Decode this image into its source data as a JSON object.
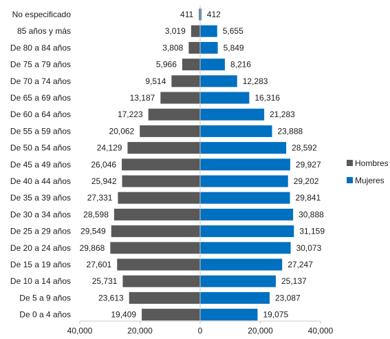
{
  "chart_data": {
    "type": "bar",
    "orientation": "horizontal",
    "layout": "population-pyramid",
    "categories": [
      "No especificado",
      "85 años y más",
      "De 80 a 84 años",
      "De 75 a 79 años",
      "De 70 a 74 años",
      "De 65 a 69 años",
      "De 60 a 64 años",
      "De 55 a 59 años",
      "De 50 a 54 años",
      "De 45 a 49 años",
      "De 40 a 44 años",
      "De 35 a 39 años",
      "De 30 a 34 años",
      "De 25 a 29 años",
      "De 20 a 24 años",
      "De 15 a 19 años",
      "De 10 a 14 años",
      "De 5 a 9 años",
      "De 0 a 4 años"
    ],
    "series": [
      {
        "name": "Hombres",
        "color": "#595959",
        "side": "left",
        "values": [
          411,
          3019,
          3808,
          5966,
          9514,
          13187,
          17223,
          20062,
          24129,
          26046,
          25942,
          27331,
          28598,
          29549,
          29868,
          27601,
          25731,
          23613,
          19409
        ],
        "labels": [
          "411",
          "3,019",
          "3,808",
          "5,966",
          "9,514",
          "13,187",
          "17,223",
          "20,062",
          "24,129",
          "26,046",
          "25,942",
          "27,331",
          "28,598",
          "29,549",
          "29,868",
          "27,601",
          "25,731",
          "23,613",
          "19,409"
        ]
      },
      {
        "name": "Mujeres",
        "color": "#0070C0",
        "side": "right",
        "values": [
          412,
          5655,
          5849,
          8216,
          12283,
          16316,
          21283,
          23888,
          28592,
          29927,
          29202,
          29841,
          30888,
          31159,
          30073,
          27247,
          25137,
          23087,
          19075
        ],
        "labels": [
          "412",
          "5,655",
          "5,849",
          "8,216",
          "12,283",
          "16,316",
          "21,283",
          "23,888",
          "28,592",
          "29,927",
          "29,202",
          "29,841",
          "30,888",
          "31,159",
          "30,073",
          "27,247",
          "25,137",
          "23,087",
          "19,075"
        ]
      }
    ],
    "xlim": [
      -40000,
      40000
    ],
    "x_ticks": [
      -40000,
      -20000,
      0,
      20000,
      40000
    ],
    "x_tick_labels": [
      "40,000",
      "20,000",
      "0",
      "20,000",
      "40,000"
    ],
    "title": "",
    "xlabel": "",
    "ylabel": "",
    "grid": false,
    "legend": {
      "position": "right",
      "entries": [
        "Hombres",
        "Mujeres"
      ]
    }
  }
}
